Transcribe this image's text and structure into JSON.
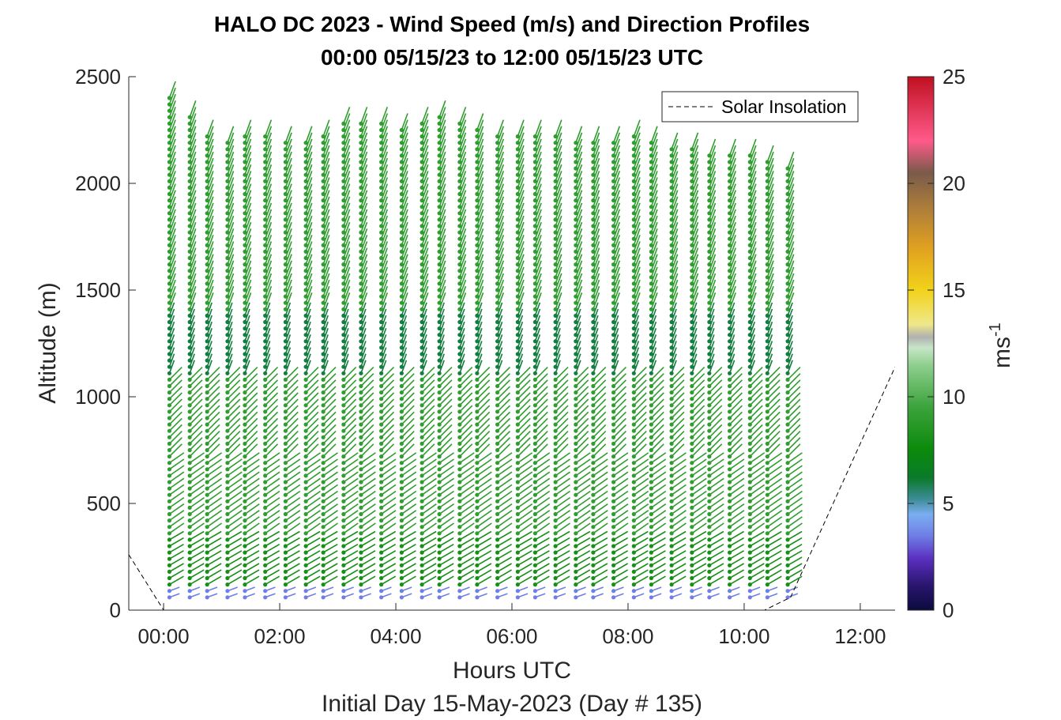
{
  "chart_data": {
    "type": "wind-barb-profile",
    "title_line1": "HALO DC 2023 - Wind Speed (m/s) and Direction Profiles",
    "title_line2": "00:00 05/15/23 to 12:00 05/15/23  UTC",
    "xlabel": "Hours UTC",
    "xlabel2": "Initial Day 15-May-2023 (Day # 135)",
    "ylabel": "Altitude (m)",
    "xlim_hours": [
      -0.6,
      12.6
    ],
    "ylim": [
      0,
      2500
    ],
    "x_ticks": [
      {
        "hour": 0,
        "label": "00:00"
      },
      {
        "hour": 2,
        "label": "02:00"
      },
      {
        "hour": 4,
        "label": "04:00"
      },
      {
        "hour": 6,
        "label": "06:00"
      },
      {
        "hour": 8,
        "label": "08:00"
      },
      {
        "hour": 10,
        "label": "10:00"
      },
      {
        "hour": 12,
        "label": "12:00"
      }
    ],
    "y_ticks": [
      0,
      500,
      1000,
      1500,
      2000,
      2500
    ],
    "legend": {
      "entry": "Solar Insolation",
      "style": "dashed",
      "placement": "top-right"
    },
    "colorbar": {
      "min": 0,
      "max": 25,
      "ticks": [
        0,
        5,
        10,
        15,
        20,
        25
      ],
      "label": "ms",
      "label_exponent": "-1",
      "stops": [
        {
          "v": 0,
          "c": "#0b0b3d"
        },
        {
          "v": 1.2,
          "c": "#2b1670"
        },
        {
          "v": 2.4,
          "c": "#5a2fc0"
        },
        {
          "v": 3.5,
          "c": "#6f7fe6"
        },
        {
          "v": 4.5,
          "c": "#7aaef0"
        },
        {
          "v": 5.2,
          "c": "#3d8c96"
        },
        {
          "v": 6.2,
          "c": "#0a7a2a"
        },
        {
          "v": 7.5,
          "c": "#0b8a0b"
        },
        {
          "v": 9.5,
          "c": "#3ba33b"
        },
        {
          "v": 11.5,
          "c": "#8fcf8f"
        },
        {
          "v": 12.3,
          "c": "#c8e6c8"
        },
        {
          "v": 12.8,
          "c": "#b0b0b0"
        },
        {
          "v": 13.4,
          "c": "#efe88a"
        },
        {
          "v": 15,
          "c": "#f2d21a"
        },
        {
          "v": 17,
          "c": "#e0a020"
        },
        {
          "v": 19,
          "c": "#a87a3c"
        },
        {
          "v": 20.5,
          "c": "#7a5a4a"
        },
        {
          "v": 22,
          "c": "#ff5a8a"
        },
        {
          "v": 25,
          "c": "#c01020"
        }
      ]
    },
    "solar_insolation": {
      "hours": [
        -0.6,
        0.0,
        10.35,
        10.8,
        12.6
      ],
      "altitude": [
        260,
        0,
        0,
        60,
        1140
      ]
    },
    "profile_times_hours": [
      0.1,
      0.45,
      0.75,
      1.1,
      1.4,
      1.75,
      2.1,
      2.45,
      2.75,
      3.1,
      3.4,
      3.75,
      4.1,
      4.45,
      4.75,
      5.1,
      5.4,
      5.75,
      6.1,
      6.4,
      6.75,
      7.1,
      7.4,
      7.75,
      8.1,
      8.4,
      8.75,
      9.1,
      9.4,
      9.75,
      10.1,
      10.4,
      10.75
    ],
    "profile_top_altitude": [
      2420,
      2330,
      2230,
      2200,
      2230,
      2220,
      2210,
      2190,
      2220,
      2300,
      2290,
      2280,
      2260,
      2280,
      2320,
      2280,
      2270,
      2230,
      2230,
      2220,
      2220,
      2210,
      2190,
      2190,
      2220,
      2210,
      2170,
      2160,
      2150,
      2140,
      2130,
      2110,
      2080
    ],
    "altitude_step": 30,
    "wind_speed_layers": [
      {
        "below": 120,
        "speed": 3.5,
        "dir_deg": 250
      },
      {
        "below": 350,
        "speed": 8,
        "dir_deg": 240
      },
      {
        "below": 700,
        "speed": 9,
        "dir_deg": 235
      },
      {
        "below": 1100,
        "speed": 9,
        "dir_deg": 225
      },
      {
        "below": 1400,
        "speed": 6,
        "dir_deg": 200
      },
      {
        "below": 2500,
        "speed": 9,
        "dir_deg": 200
      }
    ]
  }
}
